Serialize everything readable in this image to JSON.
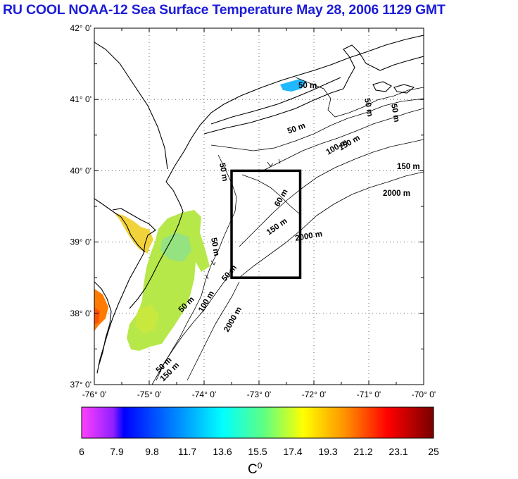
{
  "title": "RU COOL  NOAA-12 Sea Surface Temperature May 28, 2006 1129 GMT",
  "map": {
    "lat_labels": [
      "42° 0'",
      "41° 0'",
      "40° 0'",
      "39° 0'",
      "38° 0'",
      "37° 0'"
    ],
    "lon_labels": [
      "-76° 0'",
      "-75° 0'",
      "-74° 0'",
      "-73° 0'",
      "-72° 0'",
      "-71° 0'",
      "-70° 0'"
    ],
    "lat_range": [
      37,
      42
    ],
    "lon_range": [
      -76,
      -70
    ],
    "study_box": {
      "lon": [
        -73.5,
        -72.25
      ],
      "lat": [
        38.5,
        40
      ]
    },
    "contour_labels": {
      "c1": "50 m",
      "c2": "50 m",
      "c3": "50 m",
      "c4": "50 m",
      "c5": "100 m",
      "c6": "150 m",
      "c7": "2000 m",
      "c8": "50 m",
      "c9": "60 m",
      "c10": "150 m",
      "c11": "2000 m",
      "c12": "50 m",
      "c13": "50 m",
      "c14": "100 m",
      "c15": "2000 m",
      "c16": "50 m",
      "c17": "150 m",
      "c18": "150 m",
      "c19": "50 m"
    }
  },
  "colorbar": {
    "ticks": [
      "6",
      "7.9",
      "9.8",
      "11.7",
      "13.6",
      "15.5",
      "17.4",
      "19.3",
      "21.2",
      "23.1",
      "25"
    ],
    "min": 6,
    "max": 25,
    "unit": "C",
    "unit_sup": "0"
  },
  "colors": {
    "title": "#1c1cd8",
    "land_coast": "#000000",
    "sst_warm": "#ff7a00",
    "sst_mid": "#b6e84a",
    "sst_cool": "#20b8ff"
  }
}
